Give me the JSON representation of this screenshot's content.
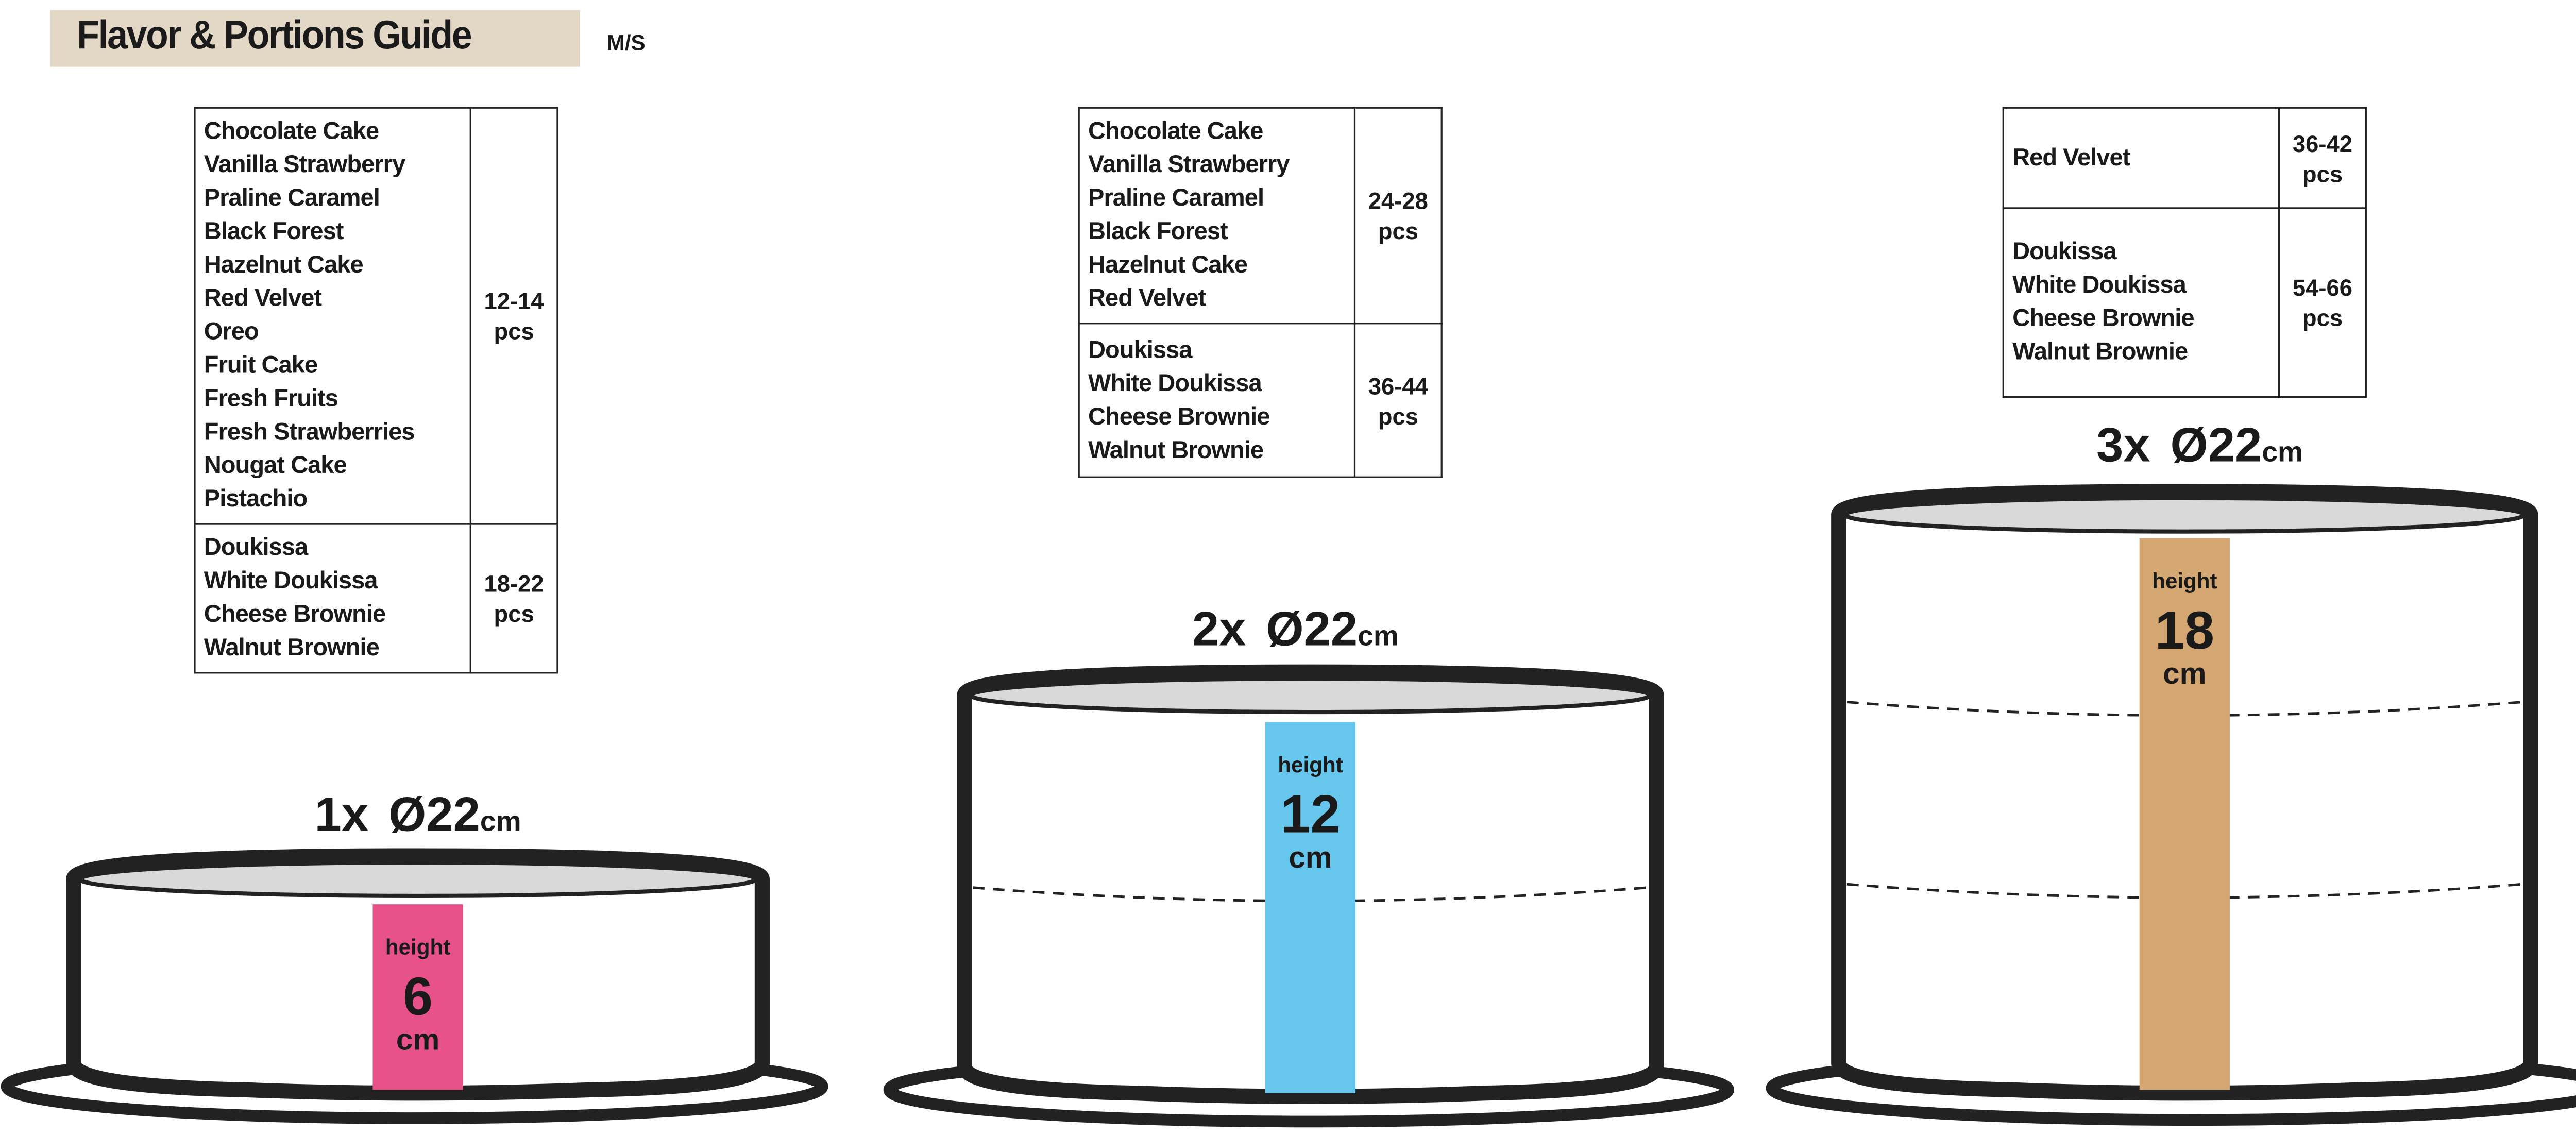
{
  "header": {
    "title": "Flavor & Portions Guide",
    "subtitle": "M/S"
  },
  "tables": [
    {
      "rows": [
        {
          "flavors": [
            "Chocolate Cake",
            "Vanilla Strawberry",
            "Praline Caramel",
            "Black Forest",
            "Hazelnut Cake",
            "Red Velvet",
            "Oreo",
            "Fruit Cake",
            "Fresh Fruits",
            "Fresh Strawberries",
            "Nougat Cake",
            "Pistachio"
          ],
          "portions": [
            "12-14",
            "pcs"
          ]
        },
        {
          "flavors": [
            "Doukissa",
            "White Doukissa",
            "Cheese Brownie",
            "Walnut Brownie"
          ],
          "portions": [
            "18-22",
            "pcs"
          ]
        }
      ]
    },
    {
      "rows": [
        {
          "flavors": [
            "Chocolate Cake",
            "Vanilla Strawberry",
            "Praline Caramel",
            "Black Forest",
            "Hazelnut Cake",
            "Red Velvet"
          ],
          "portions": [
            "24-28",
            "pcs"
          ]
        },
        {
          "flavors": [
            "Doukissa",
            "White Doukissa",
            "Cheese Brownie",
            "Walnut Brownie"
          ],
          "portions": [
            "36-44",
            "pcs"
          ]
        }
      ]
    },
    {
      "rows": [
        {
          "flavors": [
            "Red Velvet"
          ],
          "portions": [
            "36-42",
            "pcs"
          ]
        },
        {
          "flavors": [
            "Doukissa",
            "White Doukissa",
            "Cheese Brownie",
            "Walnut Brownie"
          ],
          "portions": [
            "54-66",
            "pcs"
          ]
        }
      ]
    }
  ],
  "cakes": [
    {
      "count": "1x",
      "diameter": "Ø22",
      "unit": "cm",
      "height_label": "height",
      "height_value": "6",
      "height_unit": "cm",
      "layers": 1,
      "color": "#e8528a"
    },
    {
      "count": "2x",
      "diameter": "Ø22",
      "unit": "cm",
      "height_label": "height",
      "height_value": "12",
      "height_unit": "cm",
      "layers": 2,
      "color": "#67c6ec"
    },
    {
      "count": "3x",
      "diameter": "Ø22",
      "unit": "cm",
      "height_label": "height",
      "height_value": "18",
      "height_unit": "cm",
      "layers": 3,
      "color": "#d4a672"
    }
  ],
  "colors": {
    "title_bg": "#e3d7c6",
    "outline": "#222222",
    "cake_top": "#d9d9d9"
  }
}
